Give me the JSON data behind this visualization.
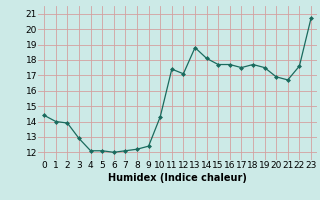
{
  "x": [
    0,
    1,
    2,
    3,
    4,
    5,
    6,
    7,
    8,
    9,
    10,
    11,
    12,
    13,
    14,
    15,
    16,
    17,
    18,
    19,
    20,
    21,
    22,
    23
  ],
  "y": [
    14.4,
    14.0,
    13.9,
    12.9,
    12.1,
    12.1,
    12.0,
    12.1,
    12.2,
    12.4,
    14.3,
    17.4,
    17.1,
    18.8,
    18.1,
    17.7,
    17.7,
    17.5,
    17.7,
    17.5,
    16.9,
    16.7,
    17.6,
    20.7
  ],
  "line_color": "#1a6b5e",
  "marker": "D",
  "marker_size": 2,
  "bg_color": "#cceae7",
  "grid_color": "#d4a0a0",
  "xlabel": "Humidex (Indice chaleur)",
  "ylabel_ticks": [
    12,
    13,
    14,
    15,
    16,
    17,
    18,
    19,
    20,
    21
  ],
  "xlim": [
    -0.5,
    23.5
  ],
  "ylim": [
    11.5,
    21.5
  ],
  "xlabel_fontsize": 7,
  "tick_fontsize": 6.5
}
